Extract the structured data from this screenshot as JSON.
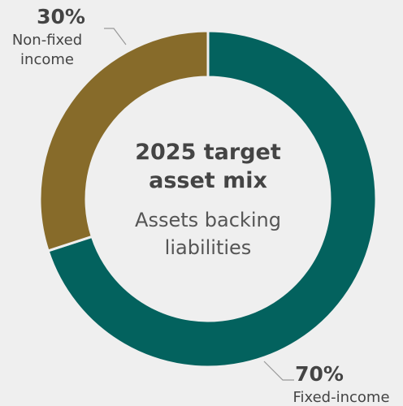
{
  "chart_data": {
    "type": "donut",
    "title": "2025 target asset mix",
    "subtitle": "Assets backing liabilities",
    "categories": [
      "Fixed-income",
      "Non-fixed income"
    ],
    "values": [
      70,
      30
    ],
    "value_labels": [
      "70%",
      "30%"
    ],
    "colors": [
      "#03625e",
      "#876b2a"
    ]
  }
}
